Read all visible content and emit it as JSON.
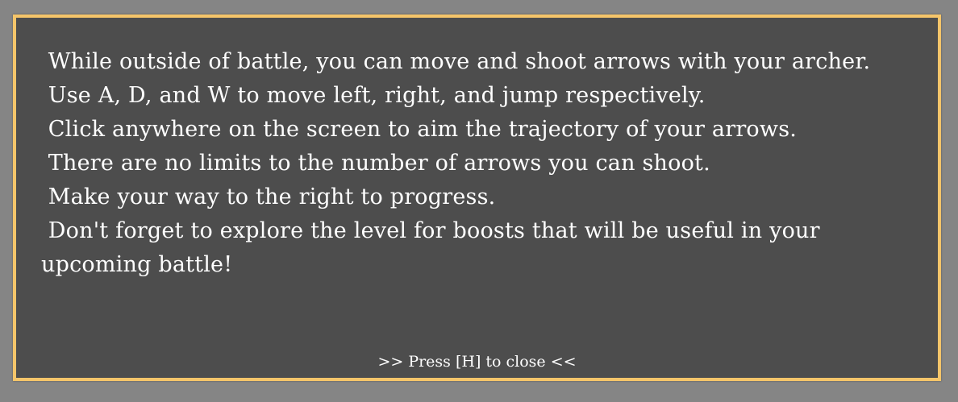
{
  "help": {
    "lines": [
      " While outside of battle, you can move and shoot arrows with your archer.",
      " Use A, D, and W to move left, right, and jump respectively.",
      " Click anywhere on the screen to aim the trajectory of your arrows.",
      " There are no limits to the number of arrows you can shoot.",
      " Make your way to the right to progress.",
      " Don't forget to explore the level for boosts that will be useful in your upcoming battle!"
    ],
    "close_hint": ">> Press [H] to close <<"
  },
  "colors": {
    "panel_background": "#4d4d4d",
    "panel_border": "#f5c56a",
    "text": "#ffffff"
  }
}
